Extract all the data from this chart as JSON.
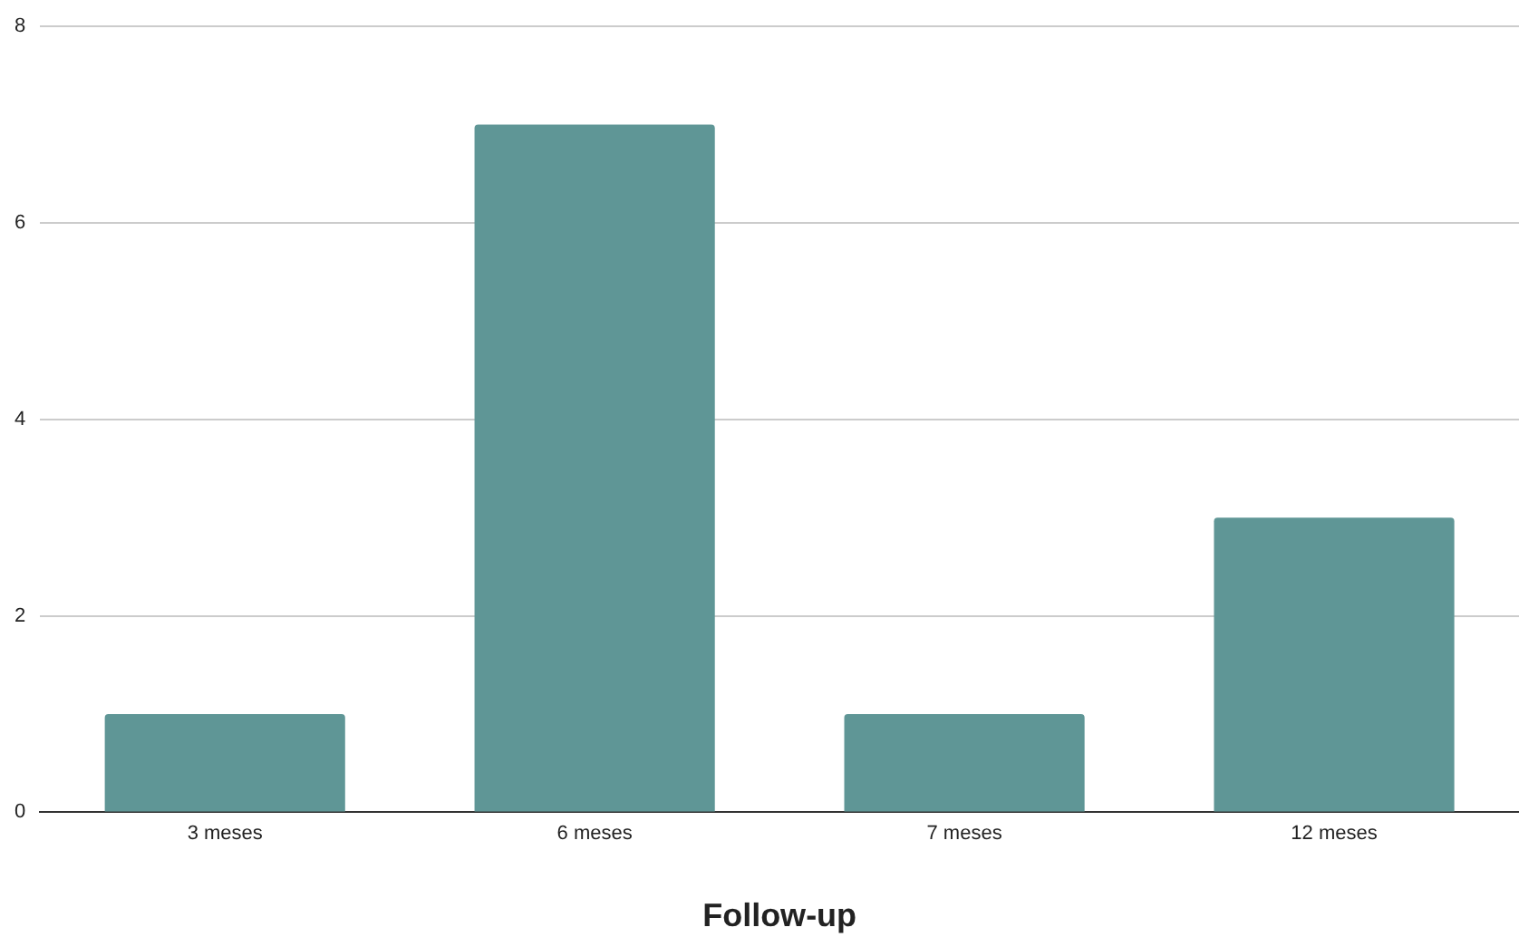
{
  "chart_data": {
    "type": "bar",
    "xlabel": "Follow-up",
    "categories": [
      "3 meses",
      "6 meses",
      "7 meses",
      "12 meses"
    ],
    "values": [
      1,
      7,
      1,
      3
    ],
    "color": "#5f9696",
    "ylim": [
      0,
      8
    ],
    "yticks": [
      0,
      2,
      4,
      6,
      8
    ],
    "grid": "y",
    "legend": false
  }
}
